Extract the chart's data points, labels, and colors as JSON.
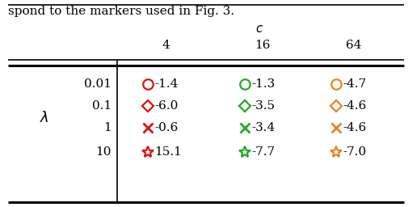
{
  "col_header_label": "c",
  "col_headers": [
    "4",
    "16",
    "64"
  ],
  "row_labels": [
    "0.01",
    "0.1",
    "1",
    "10"
  ],
  "markers": [
    "o",
    "D",
    "x",
    "*"
  ],
  "colors_by_col": [
    "#dd1111",
    "#22aa22",
    "#e08820"
  ],
  "values": [
    [
      "-1.4",
      "-1.3",
      "-4.7"
    ],
    [
      "-6.0",
      "-3.5",
      "-4.6"
    ],
    [
      "-0.6",
      "-3.4",
      "-4.6"
    ],
    [
      "15.1",
      "-7.7",
      "-7.0"
    ]
  ],
  "bg_color": "white",
  "text_color": "black",
  "title_text": "spond to the markers used in Fig. 3.",
  "fontsize_title": 11,
  "fontsize_header": 11,
  "fontsize_data": 11
}
